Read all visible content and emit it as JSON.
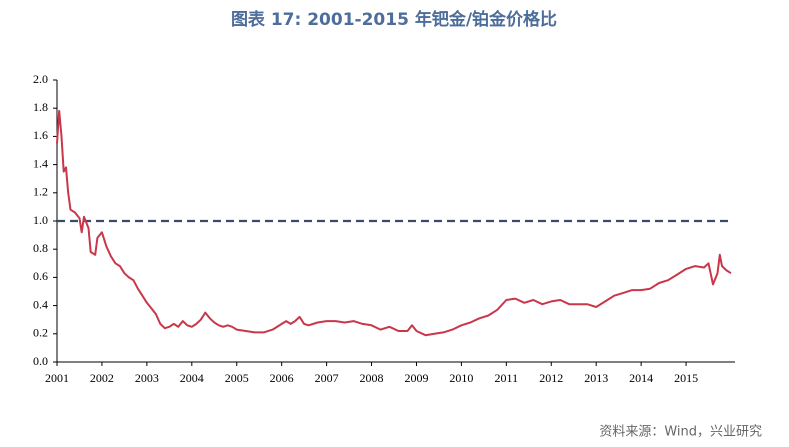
{
  "chart_data": {
    "type": "line",
    "title": "图表 17: 2001-2015 年钯金/铂金价格比",
    "source": "资料来源：Wind，兴业研究",
    "xlim": [
      2001,
      2016
    ],
    "xticks": [
      2001,
      2002,
      2003,
      2004,
      2005,
      2006,
      2007,
      2008,
      2009,
      2010,
      2011,
      2012,
      2013,
      2014,
      2015
    ],
    "ylim": [
      0,
      2
    ],
    "yticks": [
      {
        "value": 0,
        "label": "0.0"
      },
      0.2,
      0.4,
      0.6,
      0.8,
      {
        "value": 1,
        "label": "1.0"
      },
      1.2,
      1.4,
      1.6,
      1.8,
      {
        "value": 2,
        "label": "2.0"
      }
    ],
    "reference_line": {
      "value": 1,
      "color": "#3b4a6b"
    },
    "series": [
      {
        "color": "#c8374a",
        "x": [
          2001.0,
          2001.05,
          2001.1,
          2001.15,
          2001.2,
          2001.25,
          2001.3,
          2001.4,
          2001.5,
          2001.55,
          2001.6,
          2001.7,
          2001.75,
          2001.85,
          2001.9,
          2002.0,
          2002.1,
          2002.2,
          2002.3,
          2002.4,
          2002.5,
          2002.6,
          2002.7,
          2002.8,
          2002.9,
          2003.0,
          2003.1,
          2003.2,
          2003.3,
          2003.4,
          2003.5,
          2003.6,
          2003.7,
          2003.8,
          2003.9,
          2004.0,
          2004.1,
          2004.2,
          2004.3,
          2004.4,
          2004.5,
          2004.6,
          2004.7,
          2004.8,
          2004.9,
          2005.0,
          2005.2,
          2005.4,
          2005.6,
          2005.8,
          2006.0,
          2006.1,
          2006.2,
          2006.3,
          2006.4,
          2006.5,
          2006.6,
          2006.8,
          2007.0,
          2007.2,
          2007.4,
          2007.6,
          2007.8,
          2008.0,
          2008.2,
          2008.4,
          2008.6,
          2008.8,
          2008.9,
          2009.0,
          2009.2,
          2009.4,
          2009.6,
          2009.8,
          2010.0,
          2010.2,
          2010.4,
          2010.6,
          2010.8,
          2011.0,
          2011.2,
          2011.4,
          2011.6,
          2011.8,
          2012.0,
          2012.2,
          2012.4,
          2012.6,
          2012.8,
          2013.0,
          2013.2,
          2013.4,
          2013.6,
          2013.8,
          2014.0,
          2014.2,
          2014.4,
          2014.6,
          2014.8,
          2015.0,
          2015.2,
          2015.4,
          2015.5,
          2015.6,
          2015.7,
          2015.75,
          2015.8,
          2015.9,
          2016.0
        ],
        "values": [
          1.55,
          1.78,
          1.6,
          1.35,
          1.38,
          1.2,
          1.08,
          1.06,
          1.02,
          0.92,
          1.03,
          0.95,
          0.78,
          0.76,
          0.88,
          0.92,
          0.82,
          0.75,
          0.7,
          0.68,
          0.63,
          0.6,
          0.58,
          0.52,
          0.47,
          0.42,
          0.38,
          0.34,
          0.27,
          0.24,
          0.25,
          0.27,
          0.25,
          0.29,
          0.26,
          0.25,
          0.27,
          0.3,
          0.35,
          0.31,
          0.28,
          0.26,
          0.25,
          0.26,
          0.25,
          0.23,
          0.22,
          0.21,
          0.21,
          0.23,
          0.27,
          0.29,
          0.27,
          0.29,
          0.32,
          0.27,
          0.26,
          0.28,
          0.29,
          0.29,
          0.28,
          0.29,
          0.27,
          0.26,
          0.23,
          0.25,
          0.22,
          0.22,
          0.26,
          0.22,
          0.19,
          0.2,
          0.21,
          0.23,
          0.26,
          0.28,
          0.31,
          0.33,
          0.37,
          0.44,
          0.45,
          0.42,
          0.44,
          0.41,
          0.43,
          0.44,
          0.41,
          0.41,
          0.41,
          0.39,
          0.43,
          0.47,
          0.49,
          0.51,
          0.51,
          0.52,
          0.56,
          0.58,
          0.62,
          0.66,
          0.68,
          0.67,
          0.7,
          0.55,
          0.63,
          0.76,
          0.68,
          0.65,
          0.63
        ]
      }
    ]
  }
}
